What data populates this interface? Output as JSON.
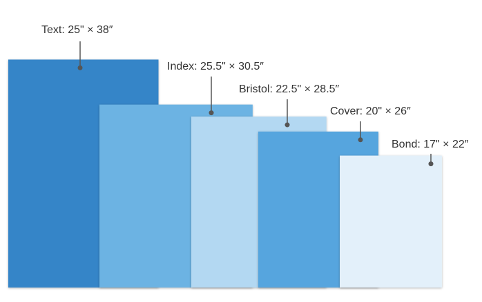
{
  "items": [
    {
      "label": "Text: 25\" × 38″",
      "width": 25,
      "height": 38,
      "color": "#3585c8"
    },
    {
      "label": "Index: 25.5\" × 30.5″",
      "width": 25.5,
      "height": 30.5,
      "color": "#6cb3e3"
    },
    {
      "label": "Bristol: 22.5\" × 28.5″",
      "width": 22.5,
      "height": 28.5,
      "color": "#b3d8f2"
    },
    {
      "label": "Cover: 20\" × 26″",
      "width": 20,
      "height": 26,
      "color": "#57a5de"
    },
    {
      "label": "Bond: 17\" × 22″",
      "width": 17,
      "height": 22,
      "color": "#e3f0fa"
    }
  ]
}
